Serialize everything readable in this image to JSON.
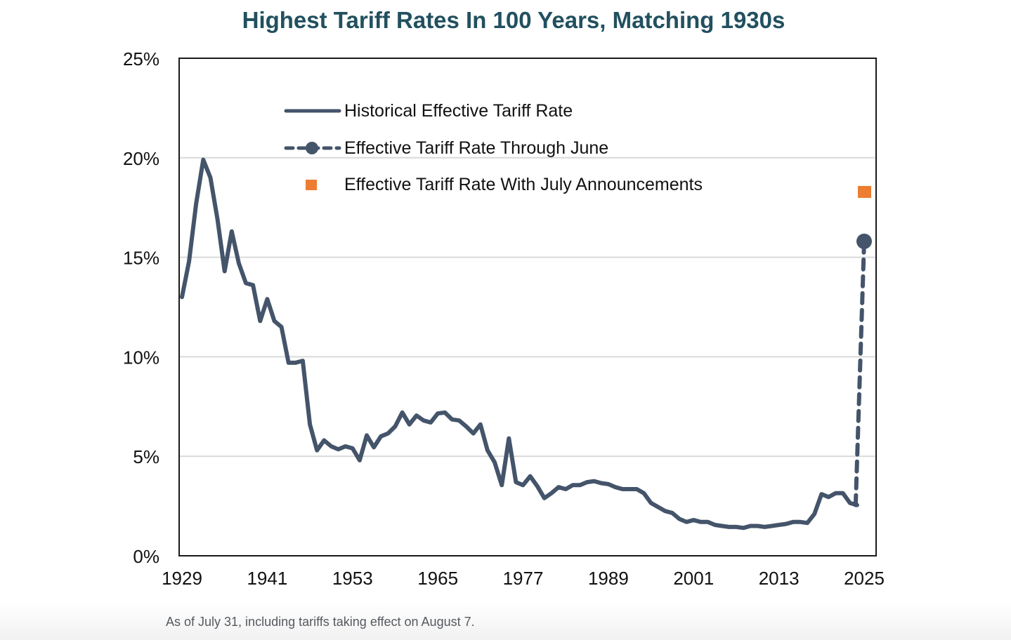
{
  "footnote": "As of July 31, including tariffs taking effect on August 7.",
  "chart_data": {
    "type": "line",
    "title": "Highest Tariff Rates In 100 Years, Matching 1930s",
    "xlabel": "",
    "ylabel": "",
    "xlim": [
      1929,
      2025
    ],
    "ylim": [
      0,
      25
    ],
    "x_ticks": [
      1929,
      1941,
      1953,
      1965,
      1977,
      1989,
      2001,
      2013,
      2025
    ],
    "y_ticks": [
      0,
      5,
      10,
      15,
      20,
      25
    ],
    "y_tick_labels": [
      "0%",
      "5%",
      "10%",
      "15%",
      "20%",
      "25%"
    ],
    "grid": "horizontal",
    "legend_position": "top-center",
    "colors": {
      "line": "#44546a",
      "orange": "#ed7d31",
      "title": "#22505f"
    },
    "series": [
      {
        "name": "Historical Effective Tariff Rate",
        "style": "solid",
        "x": [
          1929,
          1930,
          1931,
          1932,
          1933,
          1934,
          1935,
          1936,
          1937,
          1938,
          1939,
          1940,
          1941,
          1942,
          1943,
          1944,
          1945,
          1946,
          1947,
          1948,
          1949,
          1950,
          1951,
          1952,
          1953,
          1954,
          1955,
          1956,
          1957,
          1958,
          1959,
          1960,
          1961,
          1962,
          1963,
          1964,
          1965,
          1966,
          1967,
          1968,
          1969,
          1970,
          1971,
          1972,
          1973,
          1974,
          1975,
          1976,
          1977,
          1978,
          1979,
          1980,
          1981,
          1982,
          1983,
          1984,
          1985,
          1986,
          1987,
          1988,
          1989,
          1990,
          1991,
          1992,
          1993,
          1994,
          1995,
          1996,
          1997,
          1998,
          1999,
          2000,
          2001,
          2002,
          2003,
          2004,
          2005,
          2006,
          2007,
          2008,
          2009,
          2010,
          2011,
          2012,
          2013,
          2014,
          2015,
          2016,
          2017,
          2018,
          2019,
          2020,
          2021,
          2022,
          2023,
          2024
        ],
        "values": [
          13.0,
          14.8,
          17.7,
          19.9,
          19.0,
          16.9,
          14.3,
          16.3,
          14.7,
          13.7,
          13.6,
          11.8,
          12.9,
          11.8,
          11.5,
          9.7,
          9.7,
          9.8,
          6.6,
          5.3,
          5.8,
          5.5,
          5.35,
          5.5,
          5.4,
          4.8,
          6.05,
          5.45,
          6.0,
          6.15,
          6.5,
          7.2,
          6.6,
          7.05,
          6.8,
          6.7,
          7.15,
          7.2,
          6.85,
          6.8,
          6.5,
          6.15,
          6.6,
          5.3,
          4.7,
          3.55,
          5.9,
          3.7,
          3.55,
          4.0,
          3.5,
          2.9,
          3.15,
          3.45,
          3.35,
          3.55,
          3.55,
          3.7,
          3.75,
          3.65,
          3.6,
          3.45,
          3.35,
          3.35,
          3.35,
          3.15,
          2.65,
          2.45,
          2.25,
          2.15,
          1.85,
          1.7,
          1.8,
          1.7,
          1.7,
          1.55,
          1.5,
          1.45,
          1.45,
          1.4,
          1.5,
          1.5,
          1.45,
          1.5,
          1.55,
          1.6,
          1.7,
          1.7,
          1.65,
          2.1,
          3.1,
          2.95,
          3.15,
          3.15,
          2.65,
          2.55
        ]
      },
      {
        "name": "Effective Tariff Rate Through June",
        "style": "dashed-with-marker",
        "x": [
          2024,
          2025
        ],
        "values": [
          2.55,
          15.8
        ]
      },
      {
        "name": "Effective Tariff Rate With July Announcements",
        "style": "square-marker",
        "x": [
          2025
        ],
        "values": [
          18.3
        ]
      }
    ]
  }
}
